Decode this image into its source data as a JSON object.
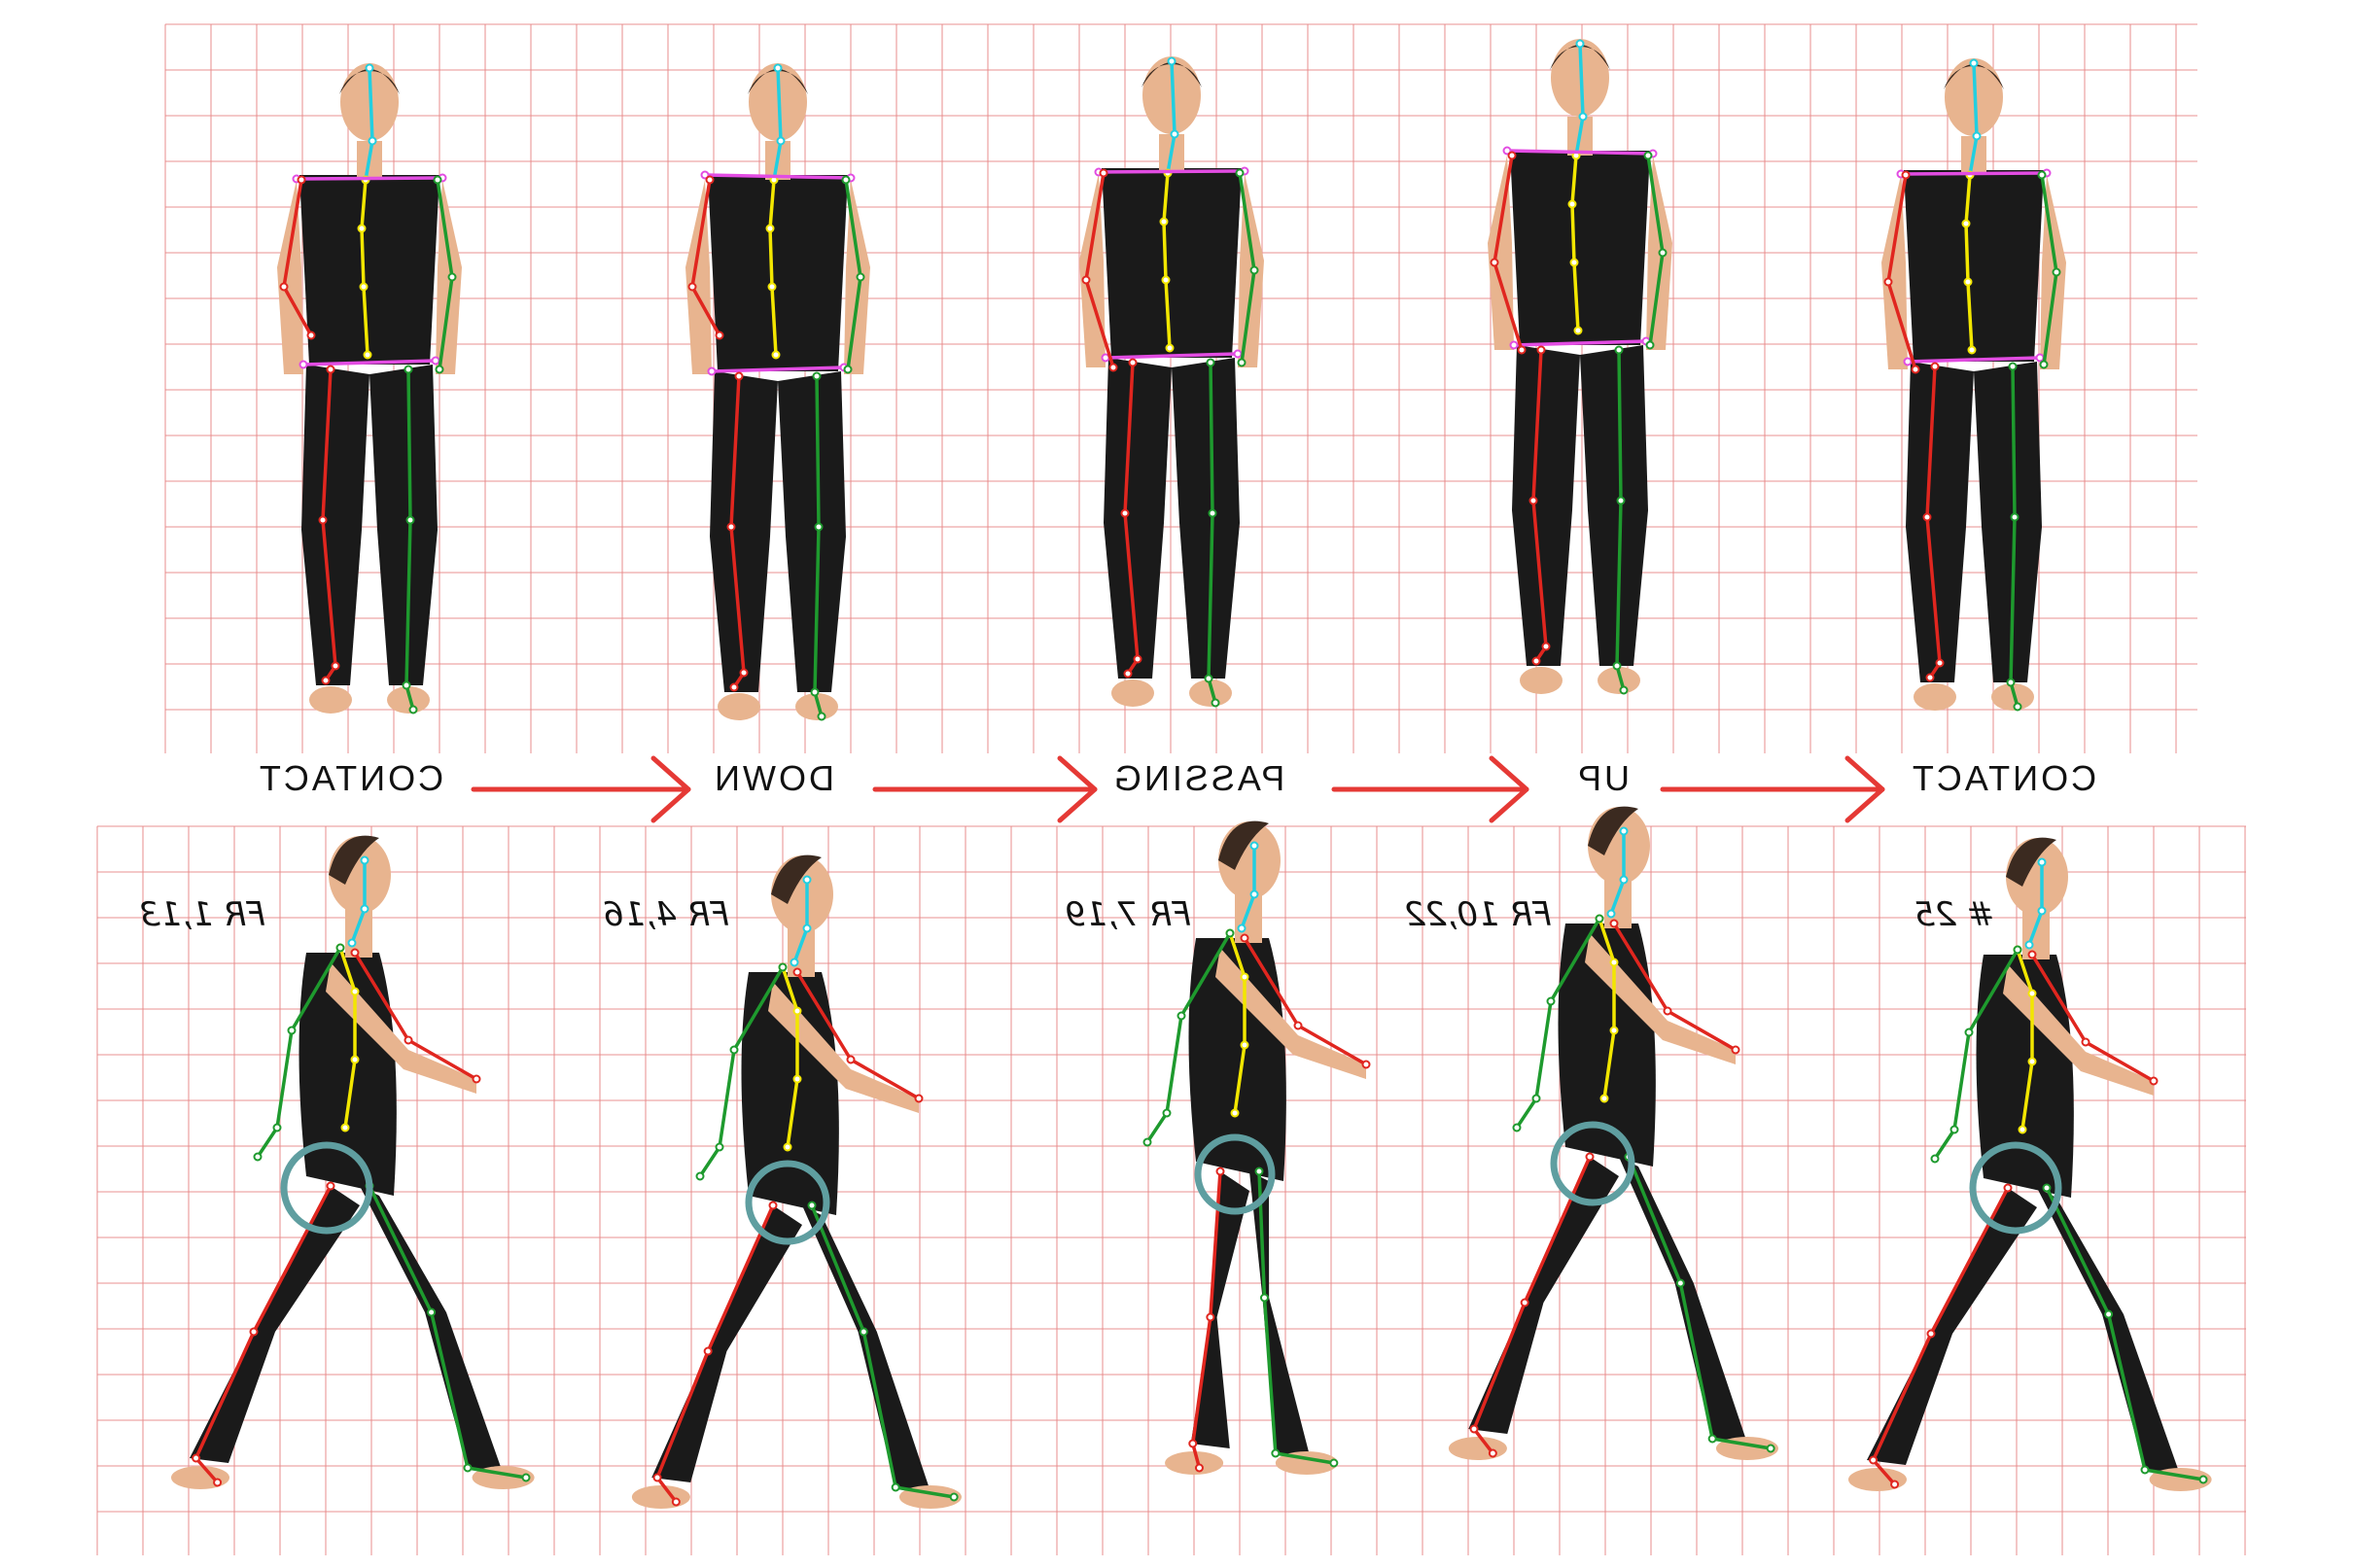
{
  "phases": [
    "CONTACT",
    "DOWN",
    "PASSING",
    "UP",
    "CONTACT"
  ],
  "frame_notes": [
    "FR 1,13",
    "FR 4,16",
    "FR 7,19",
    "FR 10,22",
    "# 25"
  ],
  "colors": {
    "grid": "#e88a8a",
    "arrow": "#e53935",
    "body": "#1a1a1a",
    "skin": "#e8b48f",
    "head_line": "#22cfe0",
    "spine": "#f2e600",
    "girdle": "#e24ce2",
    "near_limb": "#e0261f",
    "far_limb": "#1e9a2e",
    "hip_ring": "#5f9ea0"
  }
}
